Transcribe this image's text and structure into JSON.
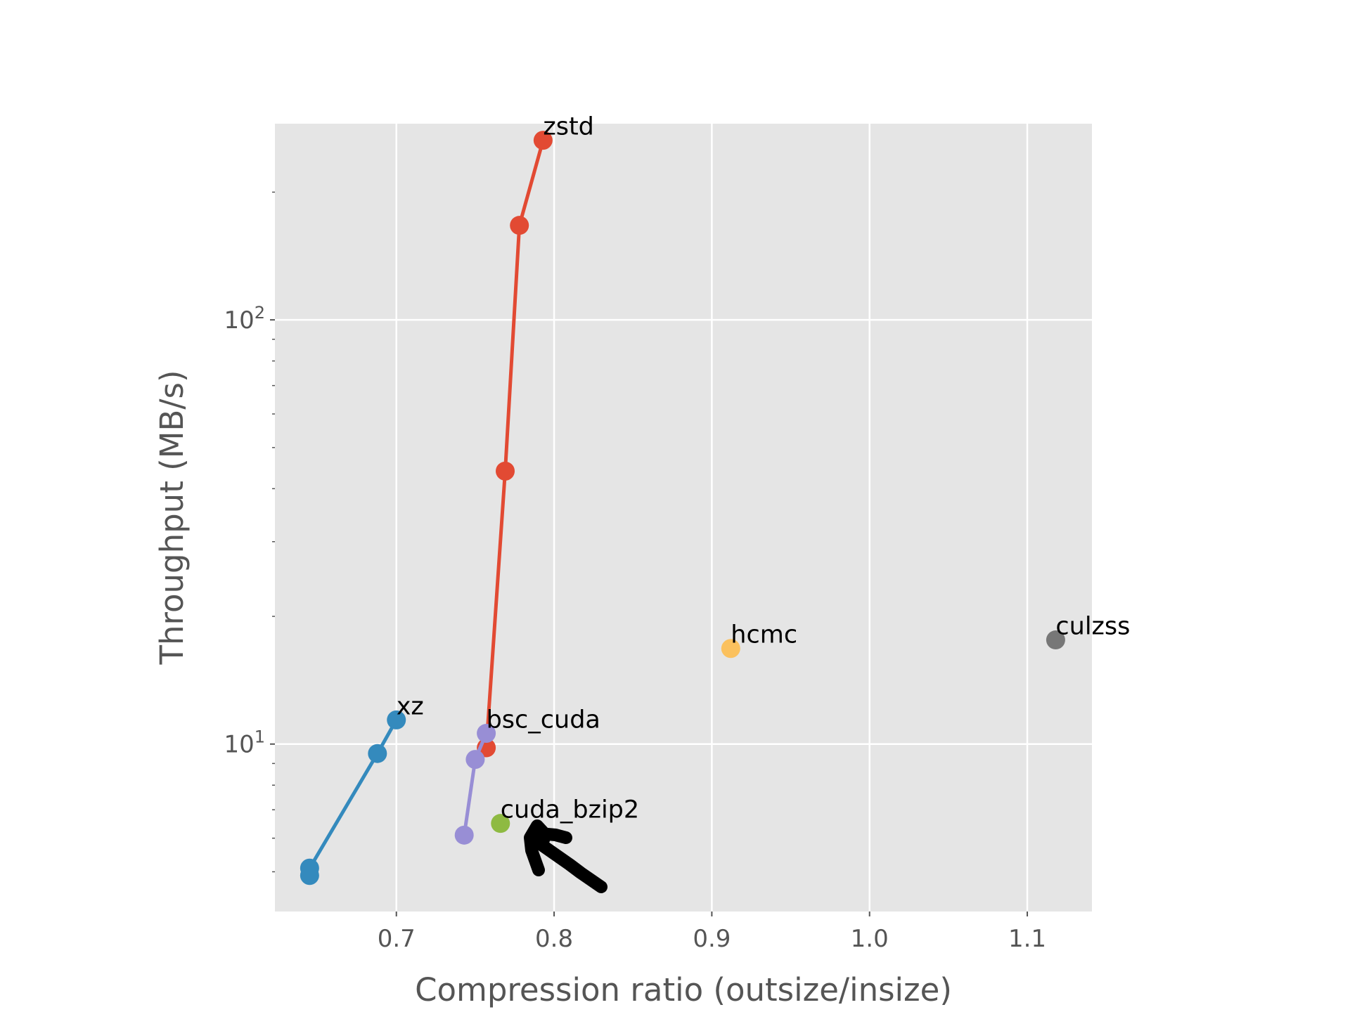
{
  "chart_data": {
    "type": "scatter",
    "title": "",
    "xlabel": "Compression ratio (outsize/insize)",
    "ylabel": "Throughput (MB/s)",
    "xlim": [
      0.623,
      1.141
    ],
    "ylim": [
      4.03,
      290
    ],
    "yscale": "log",
    "grid": true,
    "x_ticks": [
      {
        "value": 0.7,
        "label": "0.7"
      },
      {
        "value": 0.8,
        "label": "0.8"
      },
      {
        "value": 0.9,
        "label": "0.9"
      },
      {
        "value": 1.0,
        "label": "1.0"
      },
      {
        "value": 1.1,
        "label": "1.1"
      }
    ],
    "y_major_ticks": [
      {
        "value": 10,
        "base": "10",
        "exp": "1"
      },
      {
        "value": 100,
        "base": "10",
        "exp": "2"
      }
    ],
    "series": [
      {
        "name": "xz",
        "color": "#348ABD",
        "connect": true,
        "points": [
          [
            0.645,
            4.9
          ],
          [
            0.645,
            5.1
          ],
          [
            0.688,
            9.5
          ],
          [
            0.7,
            11.4
          ]
        ]
      },
      {
        "name": "zstd",
        "color": "#E24A33",
        "connect": true,
        "points": [
          [
            0.757,
            9.8
          ],
          [
            0.769,
            44
          ],
          [
            0.778,
            167
          ],
          [
            0.793,
            265
          ]
        ]
      },
      {
        "name": "bsc_cuda",
        "color": "#988ED5",
        "connect": true,
        "points": [
          [
            0.743,
            6.1
          ],
          [
            0.75,
            9.2
          ],
          [
            0.757,
            10.6
          ]
        ]
      },
      {
        "name": "cuda_bzip2",
        "color": "#8EBA42",
        "connect": false,
        "points": [
          [
            0.766,
            6.5
          ]
        ]
      },
      {
        "name": "hcmc",
        "color": "#FBC15E",
        "connect": false,
        "points": [
          [
            0.912,
            16.8
          ]
        ]
      },
      {
        "name": "culzss",
        "color": "#777777",
        "connect": false,
        "points": [
          [
            1.118,
            17.6
          ]
        ]
      }
    ],
    "annotations": [
      {
        "text": "xz",
        "x": 0.7,
        "y": 11.4
      },
      {
        "text": "zstd",
        "x": 0.793,
        "y": 265
      },
      {
        "text": "bsc_cuda",
        "x": 0.757,
        "y": 10.6
      },
      {
        "text": "cuda_bzip2",
        "x": 0.766,
        "y": 6.5
      },
      {
        "text": "hcmc",
        "x": 0.912,
        "y": 16.8
      },
      {
        "text": "culzss",
        "x": 1.118,
        "y": 17.6
      }
    ]
  }
}
